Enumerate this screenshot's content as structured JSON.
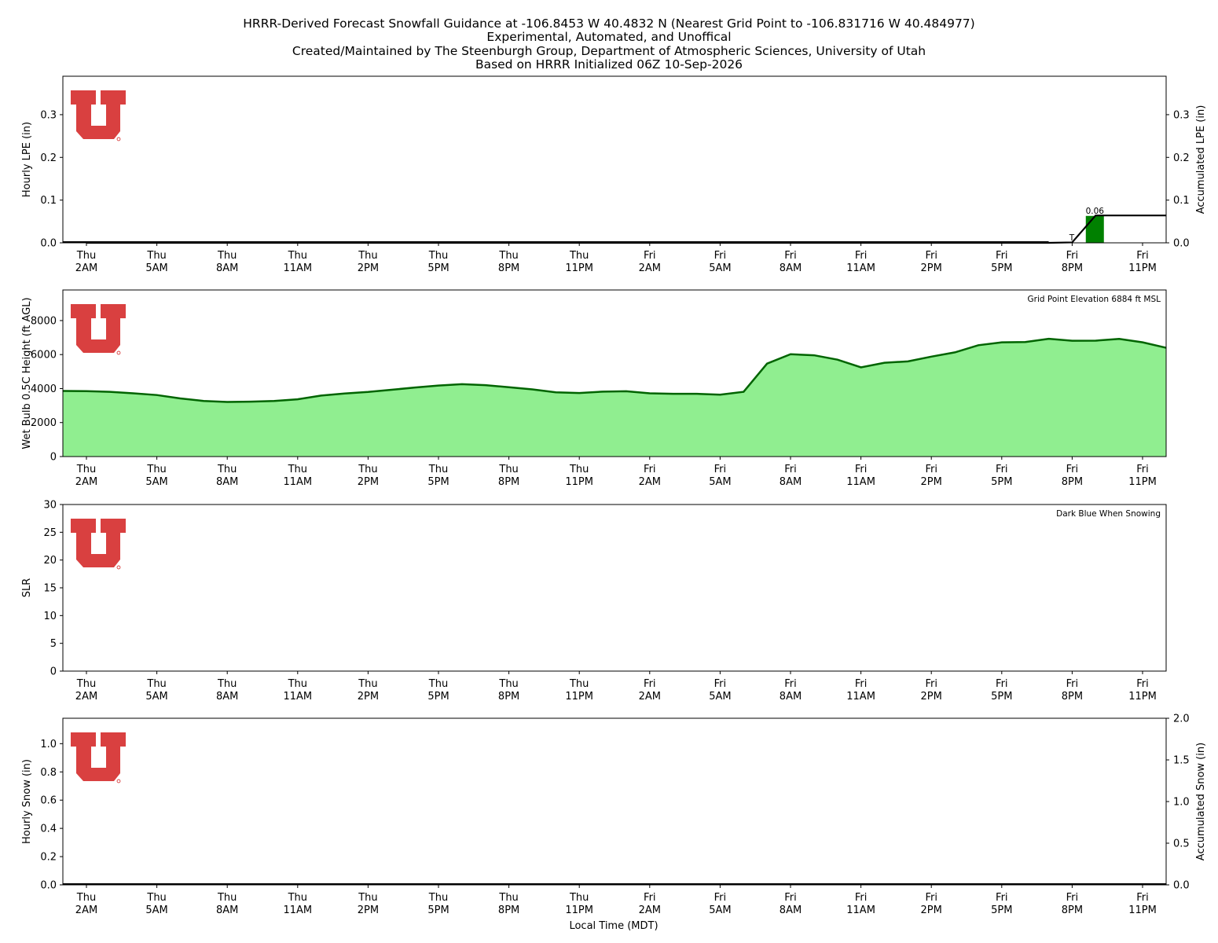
{
  "title_lines": [
    "HRRR-Derived Forecast Snowfall Guidance at -106.8453 W 40.4832 N (Nearest Grid Point to -106.831716 W 40.484977)",
    "Experimental, Automated, and Unoffical",
    "Created/Maintained by The Steenburgh Group, Department of Atmospheric Sciences, University of Utah",
    "Based on HRRR Initialized 06Z 10-Sep-2026"
  ],
  "x_ticks": [
    {
      "day": "Thu",
      "time": "2AM"
    },
    {
      "day": "Thu",
      "time": "5AM"
    },
    {
      "day": "Thu",
      "time": "8AM"
    },
    {
      "day": "Thu",
      "time": "11AM"
    },
    {
      "day": "Thu",
      "time": "2PM"
    },
    {
      "day": "Thu",
      "time": "5PM"
    },
    {
      "day": "Thu",
      "time": "8PM"
    },
    {
      "day": "Thu",
      "time": "11PM"
    },
    {
      "day": "Fri",
      "time": "2AM"
    },
    {
      "day": "Fri",
      "time": "5AM"
    },
    {
      "day": "Fri",
      "time": "8AM"
    },
    {
      "day": "Fri",
      "time": "11AM"
    },
    {
      "day": "Fri",
      "time": "2PM"
    },
    {
      "day": "Fri",
      "time": "5PM"
    },
    {
      "day": "Fri",
      "time": "8PM"
    },
    {
      "day": "Fri",
      "time": "11PM"
    }
  ],
  "xlabel": "Local Time (MDT)",
  "colors": {
    "precip_bar": "#008000",
    "wetbulb_fill": "#90ee90",
    "wetbulb_line": "#006400",
    "accum_line": "#000000",
    "logo_red": "#cc0000"
  },
  "logo": {
    "icon": "university-of-utah-block-u-logo"
  },
  "chart_data": [
    {
      "type": "bar",
      "ylabel": "Hourly LPE (in)",
      "ylabel_right": "Accumulated LPE (in)",
      "ylim": [
        0,
        0.39
      ],
      "yticks": [
        "0.0",
        "0.1",
        "0.2",
        "0.3"
      ],
      "yticks_right": [
        "0.0",
        "0.1",
        "0.2",
        "0.3"
      ],
      "x_hours": [
        1,
        48
      ],
      "bars": [
        {
          "hour": 44,
          "value": 0.063,
          "label": "0.06"
        }
      ],
      "trace_marker": {
        "hour": 43,
        "label": "T"
      },
      "accumulated": {
        "hours": [
          1,
          42,
          43,
          44,
          48
        ],
        "values": [
          0,
          0,
          0.001,
          0.064,
          0.064
        ]
      }
    },
    {
      "type": "area",
      "ylabel": "Wet Bulb 0.5C Height (ft AGL)",
      "ylim": [
        0,
        9800
      ],
      "yticks": [
        "0",
        "2000",
        "4000",
        "6000",
        "8000"
      ],
      "annotation": "Grid Point Elevation 6884 ft MSL",
      "x_hours": [
        1,
        48
      ],
      "hours": [
        1,
        2,
        3,
        4,
        5,
        6,
        7,
        8,
        9,
        10,
        11,
        12,
        13,
        14,
        15,
        16,
        17,
        18,
        19,
        20,
        21,
        22,
        23,
        24,
        25,
        26,
        27,
        28,
        29,
        30,
        31,
        32,
        33,
        34,
        35,
        36,
        37,
        38,
        39,
        40,
        41,
        42,
        43,
        44,
        45,
        46,
        47,
        48
      ],
      "values": [
        3860,
        3850,
        3810,
        3720,
        3620,
        3420,
        3270,
        3210,
        3230,
        3270,
        3370,
        3590,
        3710,
        3800,
        3930,
        4060,
        4180,
        4260,
        4200,
        4080,
        3950,
        3780,
        3740,
        3820,
        3840,
        3720,
        3690,
        3690,
        3640,
        3810,
        5470,
        6020,
        5960,
        5700,
        5250,
        5520,
        5600,
        5880,
        6130,
        6550,
        6720,
        6740,
        6930,
        6810,
        6820,
        6920,
        6720,
        6400
      ]
    },
    {
      "type": "line",
      "ylabel": "SLR",
      "ylim": [
        0,
        30
      ],
      "yticks": [
        "0",
        "5",
        "10",
        "15",
        "20",
        "25",
        "30"
      ],
      "annotation": "Dark Blue When Snowing",
      "x_hours": [
        1,
        48
      ],
      "values": []
    },
    {
      "type": "bar",
      "ylabel": "Hourly Snow (in)",
      "ylabel_right": "Accumulated Snow (in)",
      "ylim": [
        0,
        1.18
      ],
      "yticks": [
        "0.0",
        "0.2",
        "0.4",
        "0.6",
        "0.8",
        "1.0"
      ],
      "yticks_right": [
        "0.0",
        "0.5",
        "1.0",
        "1.5",
        "2.0"
      ],
      "ylim_right": [
        0,
        2.0
      ],
      "x_hours": [
        1,
        48
      ],
      "accumulated": {
        "hours": [
          1,
          48
        ],
        "values": [
          0,
          0
        ]
      }
    }
  ]
}
